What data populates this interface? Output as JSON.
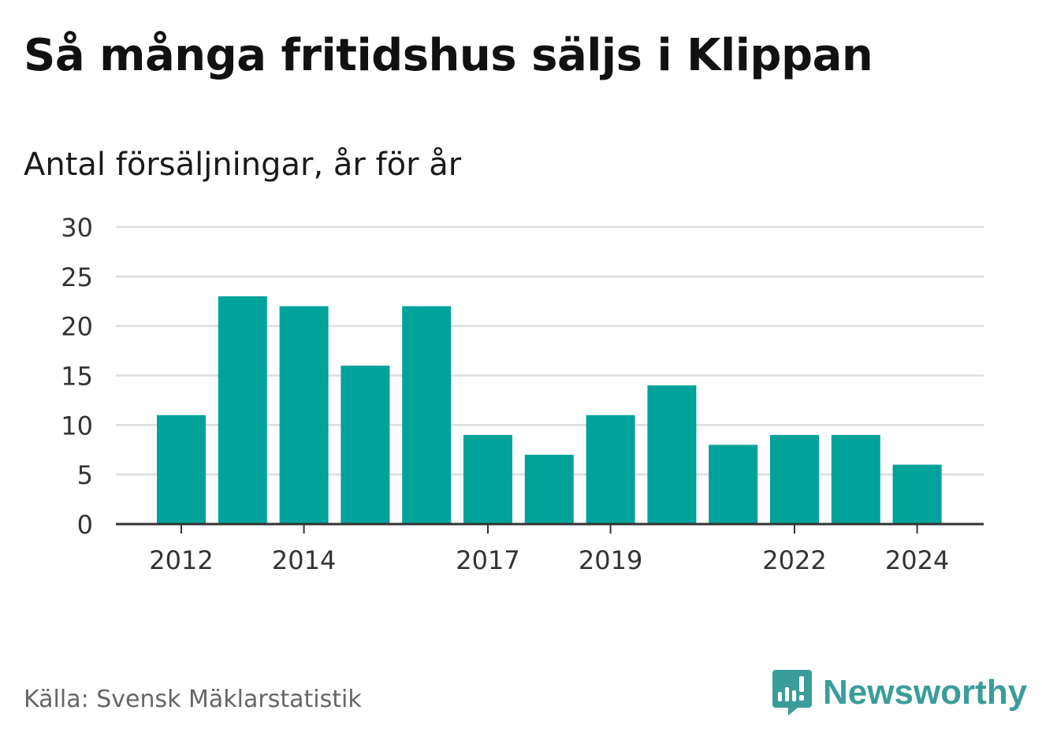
{
  "title": "Så många fritidshus säljs i Klippan",
  "subtitle": "Antal försäljningar, år för år",
  "source": "Källa: Svensk Mäklarstatistik",
  "brand": {
    "name": "Newsworthy",
    "icon": "newsworthy-logo-icon",
    "color": "#3a9d9a"
  },
  "chart_data": {
    "type": "bar",
    "categories": [
      "2012",
      "2013",
      "2014",
      "2015",
      "2016",
      "2017",
      "2018",
      "2019",
      "2020",
      "2021",
      "2022",
      "2023",
      "2024"
    ],
    "values": [
      11,
      23,
      22,
      16,
      22,
      9,
      7,
      11,
      14,
      8,
      9,
      9,
      6
    ],
    "x_tick_labels": [
      "2012",
      "2014",
      "2017",
      "2019",
      "2022",
      "2024"
    ],
    "y_ticks": [
      0,
      5,
      10,
      15,
      20,
      25,
      30
    ],
    "ylim": [
      0,
      30
    ],
    "bar_color": "#00a39a",
    "grid": true
  }
}
